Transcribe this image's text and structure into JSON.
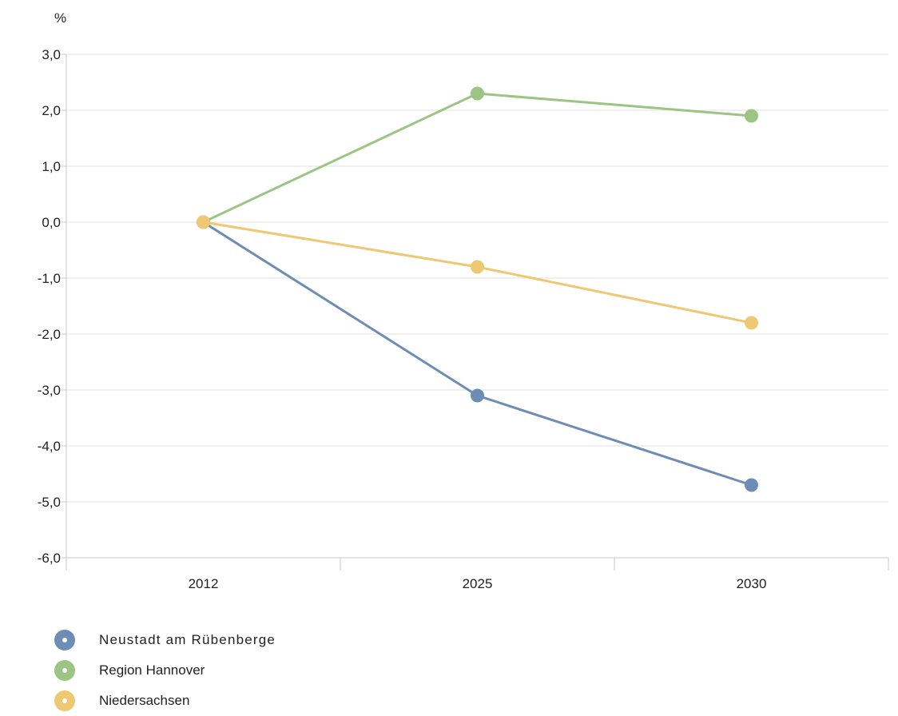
{
  "chart_data": {
    "type": "line",
    "unit_label": "%",
    "categories": [
      "2012",
      "2025",
      "2030"
    ],
    "y_ticks": [
      "3,0",
      "2,0",
      "1,0",
      "0,0",
      "-1,0",
      "-2,0",
      "-3,0",
      "-4,0",
      "-5,0",
      "-6,0"
    ],
    "ylim": [
      -6,
      3
    ],
    "grid": true,
    "legend_position": "bottom-left",
    "series": [
      {
        "name": "Neustadt am Rübenberge",
        "color": "#6e8db5",
        "values": [
          0,
          -3.1,
          -4.7
        ]
      },
      {
        "name": "Region Hannover",
        "color": "#9cc483",
        "values": [
          0,
          2.3,
          1.9
        ]
      },
      {
        "name": "Niedersachsen",
        "color": "#eec872",
        "values": [
          0,
          -0.8,
          -1.8
        ]
      }
    ]
  }
}
